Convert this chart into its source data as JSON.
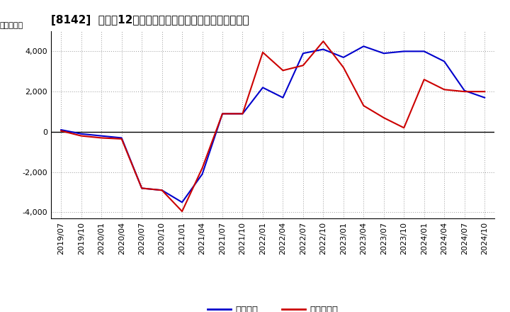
{
  "title": "[8142]  利益の12か月移動合計の対前年同期増減額の推移",
  "ylabel": "（百万円）",
  "legend_labels": [
    "経常利益",
    "当期純利益"
  ],
  "line_colors": [
    "#0000cc",
    "#cc0000"
  ],
  "x_labels": [
    "2019/07",
    "2019/10",
    "2020/01",
    "2020/04",
    "2020/07",
    "2020/10",
    "2021/01",
    "2021/04",
    "2021/07",
    "2021/10",
    "2022/01",
    "2022/04",
    "2022/07",
    "2022/10",
    "2023/01",
    "2023/04",
    "2023/07",
    "2023/10",
    "2024/01",
    "2024/04",
    "2024/07",
    "2024/10"
  ],
  "keijo_rieki": [
    100,
    -100,
    -200,
    -300,
    -2800,
    -2900,
    -3500,
    -2100,
    900,
    900,
    2200,
    1700,
    3900,
    4100,
    3700,
    4250,
    3900,
    4000,
    4000,
    3500,
    2050,
    1700
  ],
  "touki_junrieki": [
    50,
    -200,
    -300,
    -350,
    -2800,
    -2900,
    -3950,
    -1800,
    900,
    900,
    3950,
    3050,
    3300,
    4500,
    3200,
    1300,
    700,
    200,
    2600,
    2100,
    2000,
    2000
  ],
  "ylim": [
    -4300,
    5000
  ],
  "yticks": [
    -4000,
    -2000,
    0,
    2000,
    4000
  ],
  "background_color": "#ffffff",
  "grid_color": "#999999",
  "title_fontsize": 11,
  "axis_fontsize": 8,
  "legend_fontsize": 9.5
}
